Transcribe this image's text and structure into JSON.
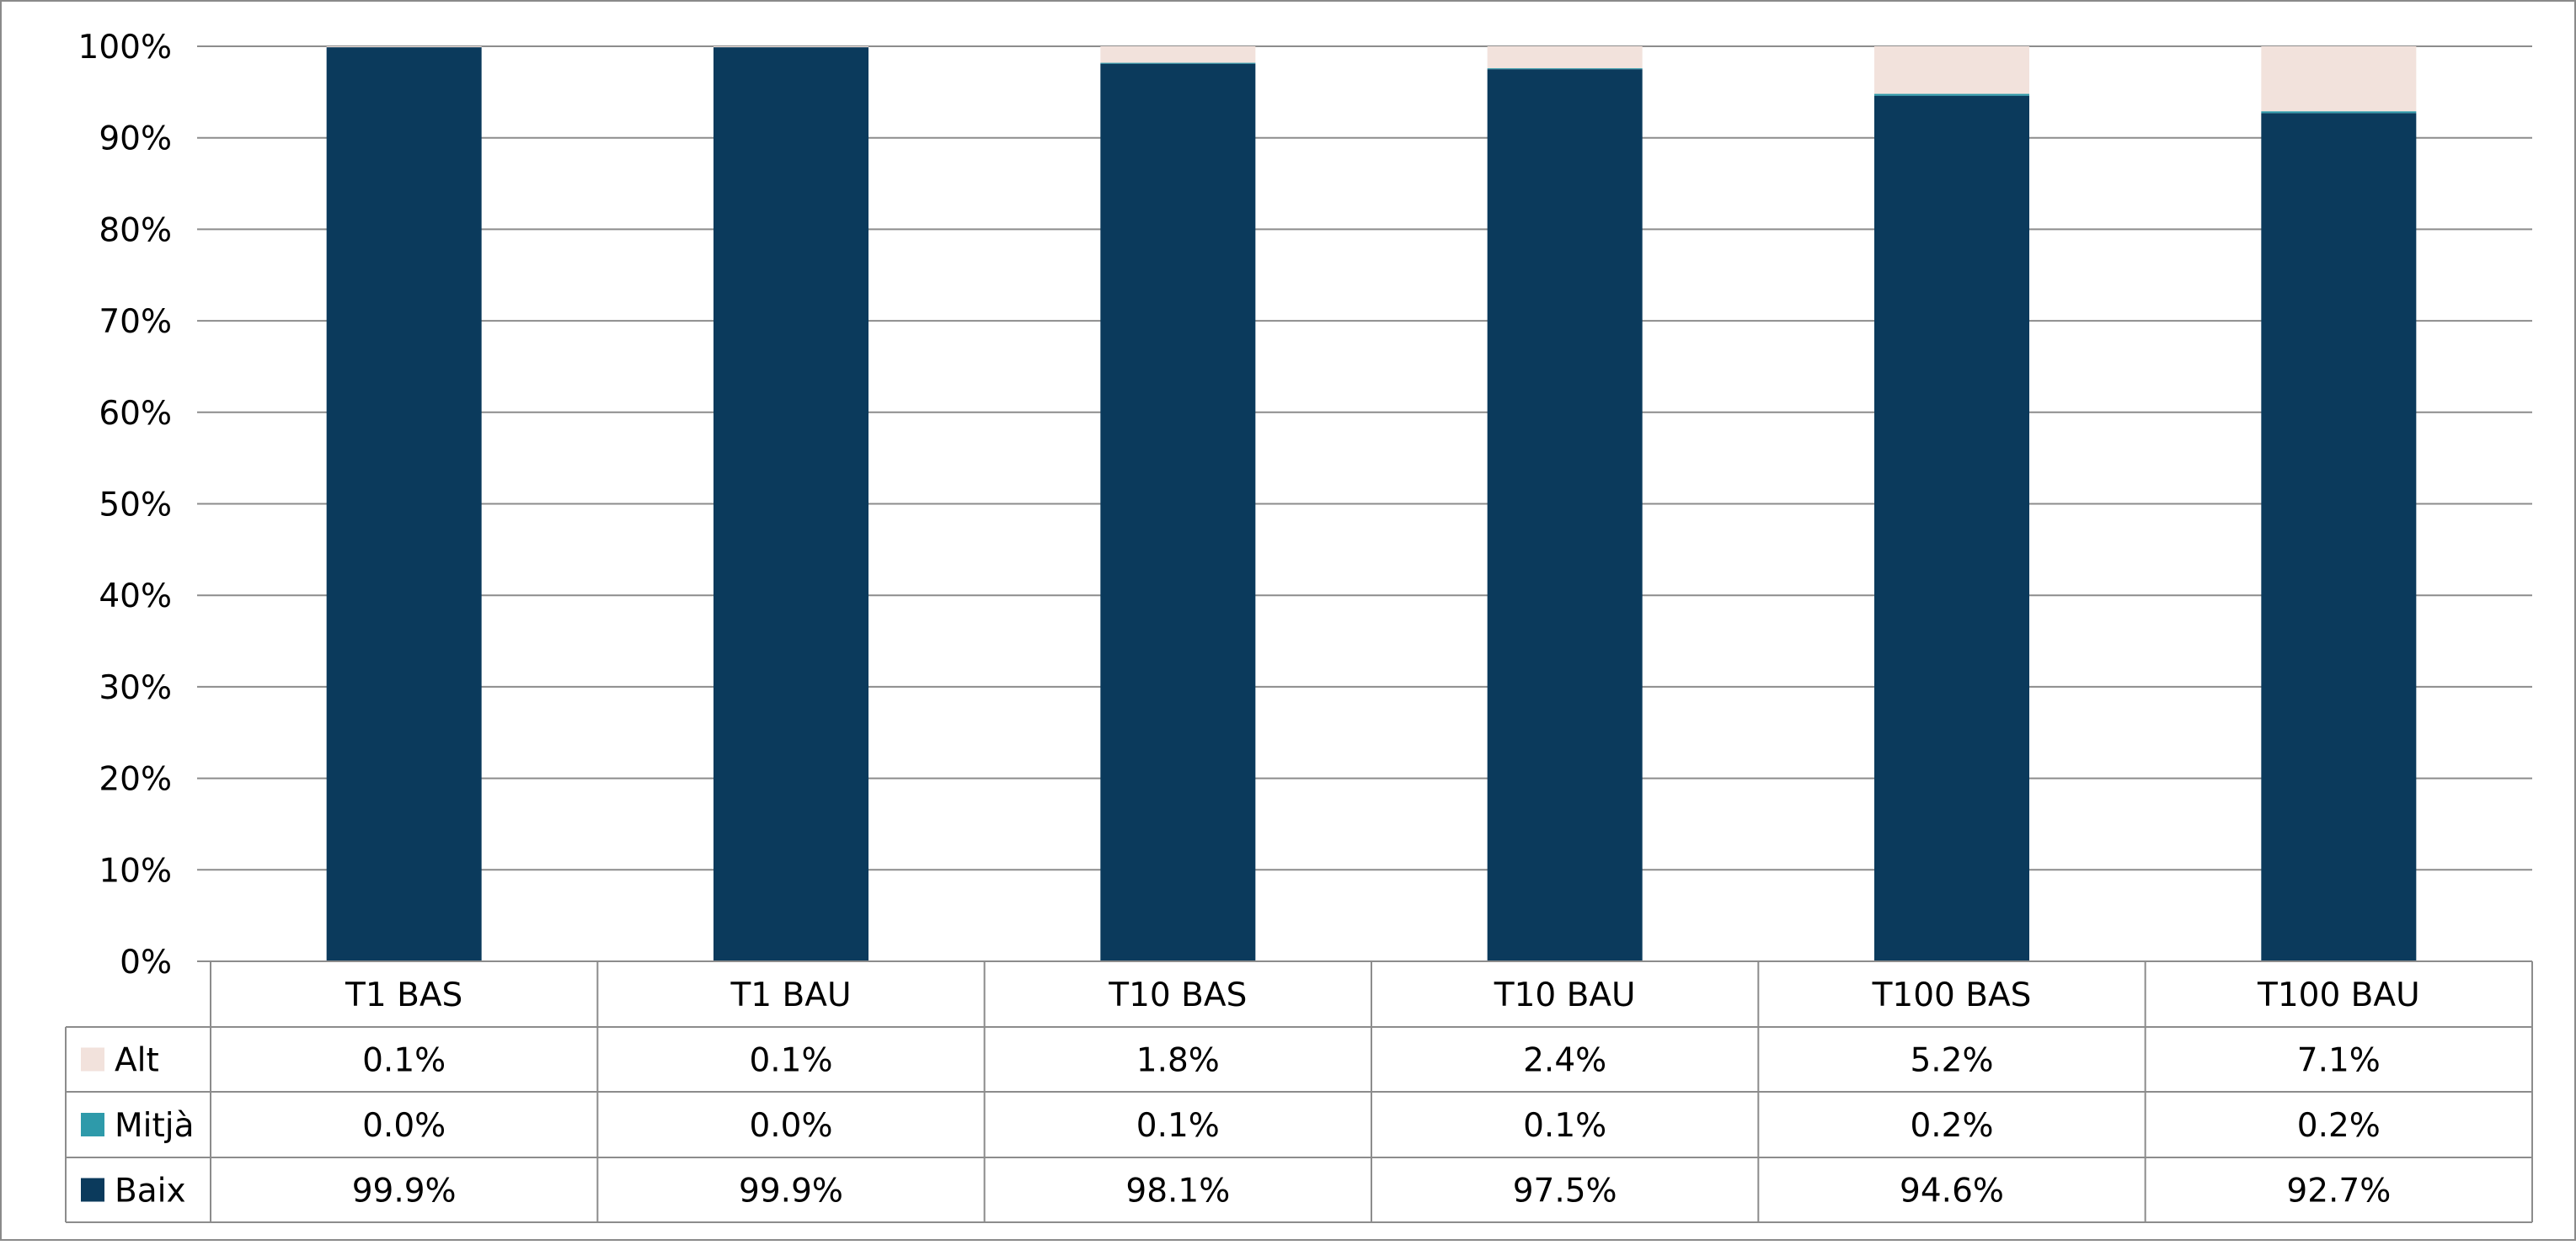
{
  "chart_data": {
    "type": "bar",
    "stacked": true,
    "percent_stacked": true,
    "categories": [
      "T1 BAS",
      "T1 BAU",
      "T10 BAS",
      "T10 BAU",
      "T100 BAS",
      "T100 BAU"
    ],
    "series": [
      {
        "name": "Baix",
        "color": "#0b3a5c",
        "values": [
          99.9,
          99.9,
          98.1,
          97.5,
          94.6,
          92.7
        ],
        "labels": [
          "99.9%",
          "99.9%",
          "98.1%",
          "97.5%",
          "94.6%",
          "92.7%"
        ]
      },
      {
        "name": "Mitjà",
        "color": "#2e9aaa",
        "values": [
          0.0,
          0.0,
          0.1,
          0.1,
          0.2,
          0.2
        ],
        "labels": [
          "0.0%",
          "0.0%",
          "0.1%",
          "0.1%",
          "0.2%",
          "0.2%"
        ]
      },
      {
        "name": "Alt",
        "color": "#f2e2dc",
        "values": [
          0.1,
          0.1,
          1.8,
          2.4,
          5.2,
          7.1
        ],
        "labels": [
          "0.1%",
          "0.1%",
          "1.8%",
          "2.4%",
          "5.2%",
          "7.1%"
        ]
      }
    ],
    "table_row_order": [
      "Alt",
      "Mitjà",
      "Baix"
    ],
    "ylim": [
      0,
      100
    ],
    "yticks": [
      "0%",
      "10%",
      "20%",
      "30%",
      "40%",
      "50%",
      "60%",
      "70%",
      "80%",
      "90%",
      "100%"
    ],
    "grid": true,
    "legend": "data-table-left",
    "title": "",
    "xlabel": "",
    "ylabel": ""
  }
}
